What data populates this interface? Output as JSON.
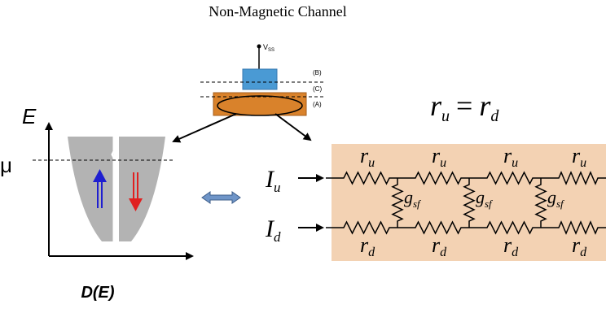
{
  "title": "Non-Magnetic Channel",
  "device": {
    "terminal_label": "V",
    "terminal_sub": "SS",
    "layer_labels": {
      "top": "(B)",
      "middle": "(C)",
      "bottom": "(A)"
    },
    "colors": {
      "contact": "#4a9ad4",
      "channel": "#d9822b"
    }
  },
  "dos": {
    "y_label": "E",
    "x_label": "D(E)",
    "fermi_label": "μ",
    "spin_up_color": "#1f1fd0",
    "spin_down_color": "#e02020",
    "band_fill": "#b3b3b3"
  },
  "equivalence_arrow_color": "#6f95c8",
  "circuit": {
    "equation": {
      "lhs": "r",
      "lhs_sub": "u",
      "op": "=",
      "rhs": "r",
      "rhs_sub": "d"
    },
    "current_up": {
      "symbol": "I",
      "sub": "u"
    },
    "current_down": {
      "symbol": "I",
      "sub": "d"
    },
    "top_resistors": [
      {
        "symbol": "r",
        "sub": "u"
      },
      {
        "symbol": "r",
        "sub": "u"
      },
      {
        "symbol": "r",
        "sub": "u"
      },
      {
        "symbol": "r",
        "sub": "u"
      }
    ],
    "bottom_resistors": [
      {
        "symbol": "r",
        "sub": "d"
      },
      {
        "symbol": "r",
        "sub": "d"
      },
      {
        "symbol": "r",
        "sub": "d"
      },
      {
        "symbol": "r",
        "sub": "d"
      }
    ],
    "shunt_resistors": [
      {
        "symbol": "g",
        "sub": "sf"
      },
      {
        "symbol": "g",
        "sub": "sf"
      },
      {
        "symbol": "g",
        "sub": "sf"
      }
    ],
    "background_color": "#f3d2b3"
  }
}
